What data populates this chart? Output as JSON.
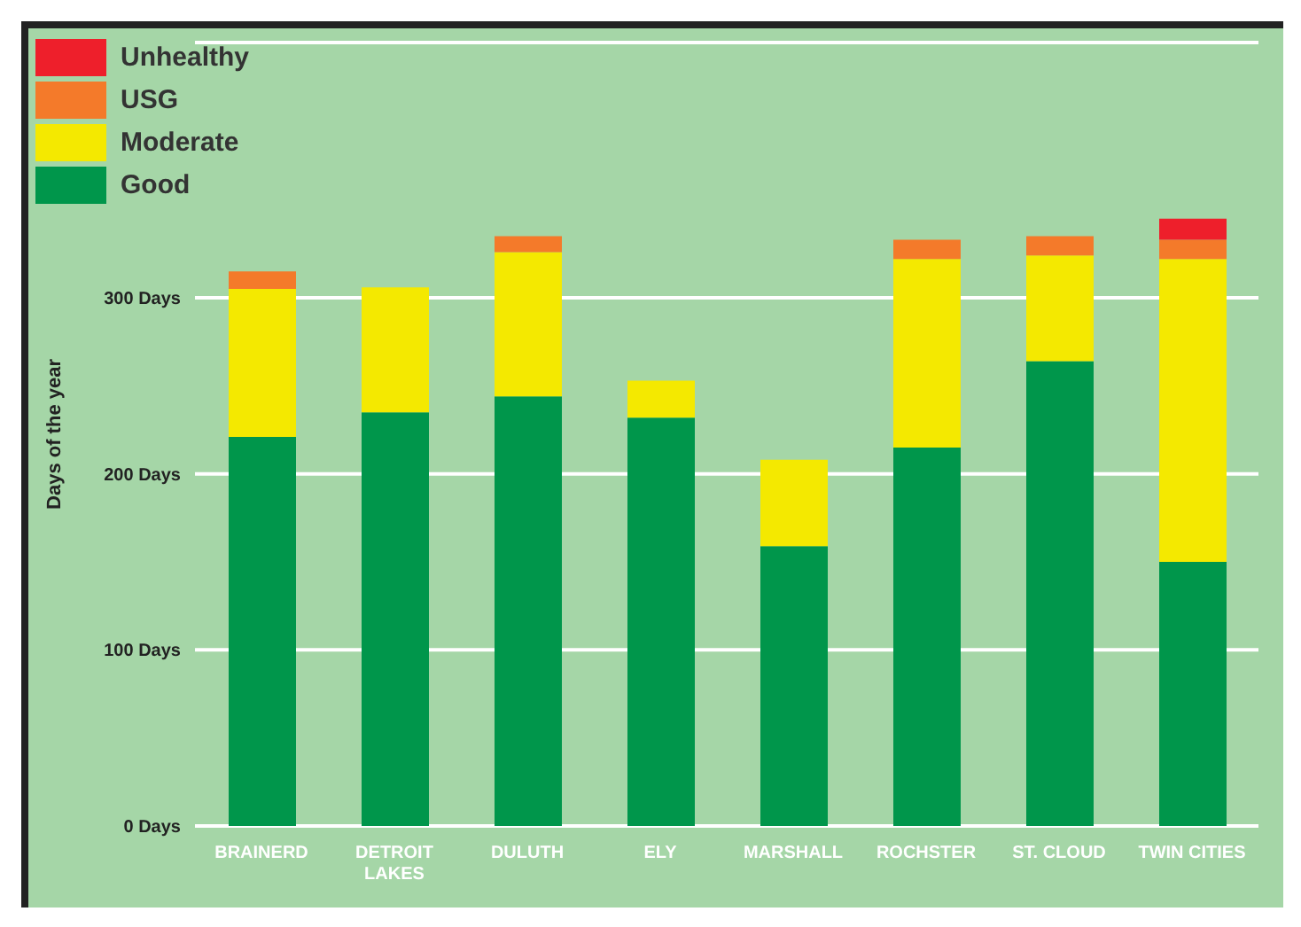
{
  "chart_data": {
    "type": "bar",
    "stacked": true,
    "ylabel": "Days of the year",
    "categories": [
      "BRAINERD",
      "DETROIT LAKES",
      "DULUTH",
      "ELY",
      "MARSHALL",
      "ROCHSTER",
      "ST. CLOUD",
      "TWIN CITIES"
    ],
    "series": [
      {
        "name": "Good",
        "color": "#00964b",
        "values": [
          221,
          235,
          244,
          232,
          159,
          215,
          264,
          150
        ]
      },
      {
        "name": "Moderate",
        "color": "#f4e900",
        "values": [
          84,
          71,
          82,
          21,
          49,
          107,
          60,
          172
        ]
      },
      {
        "name": "USG",
        "color": "#f47a2a",
        "values": [
          10,
          0,
          9,
          0,
          0,
          11,
          11,
          11
        ]
      },
      {
        "name": "Unhealthy",
        "color": "#ee1f2b",
        "values": [
          0,
          0,
          0,
          0,
          0,
          0,
          0,
          12
        ]
      }
    ],
    "ylim": [
      0,
      445
    ],
    "yticks": [
      {
        "value": 0,
        "label": "0 Days"
      },
      {
        "value": 100,
        "label": "100 Days"
      },
      {
        "value": 200,
        "label": "200 Days"
      },
      {
        "value": 300,
        "label": "300 Days"
      }
    ],
    "grid": "y",
    "legend": "top left"
  }
}
